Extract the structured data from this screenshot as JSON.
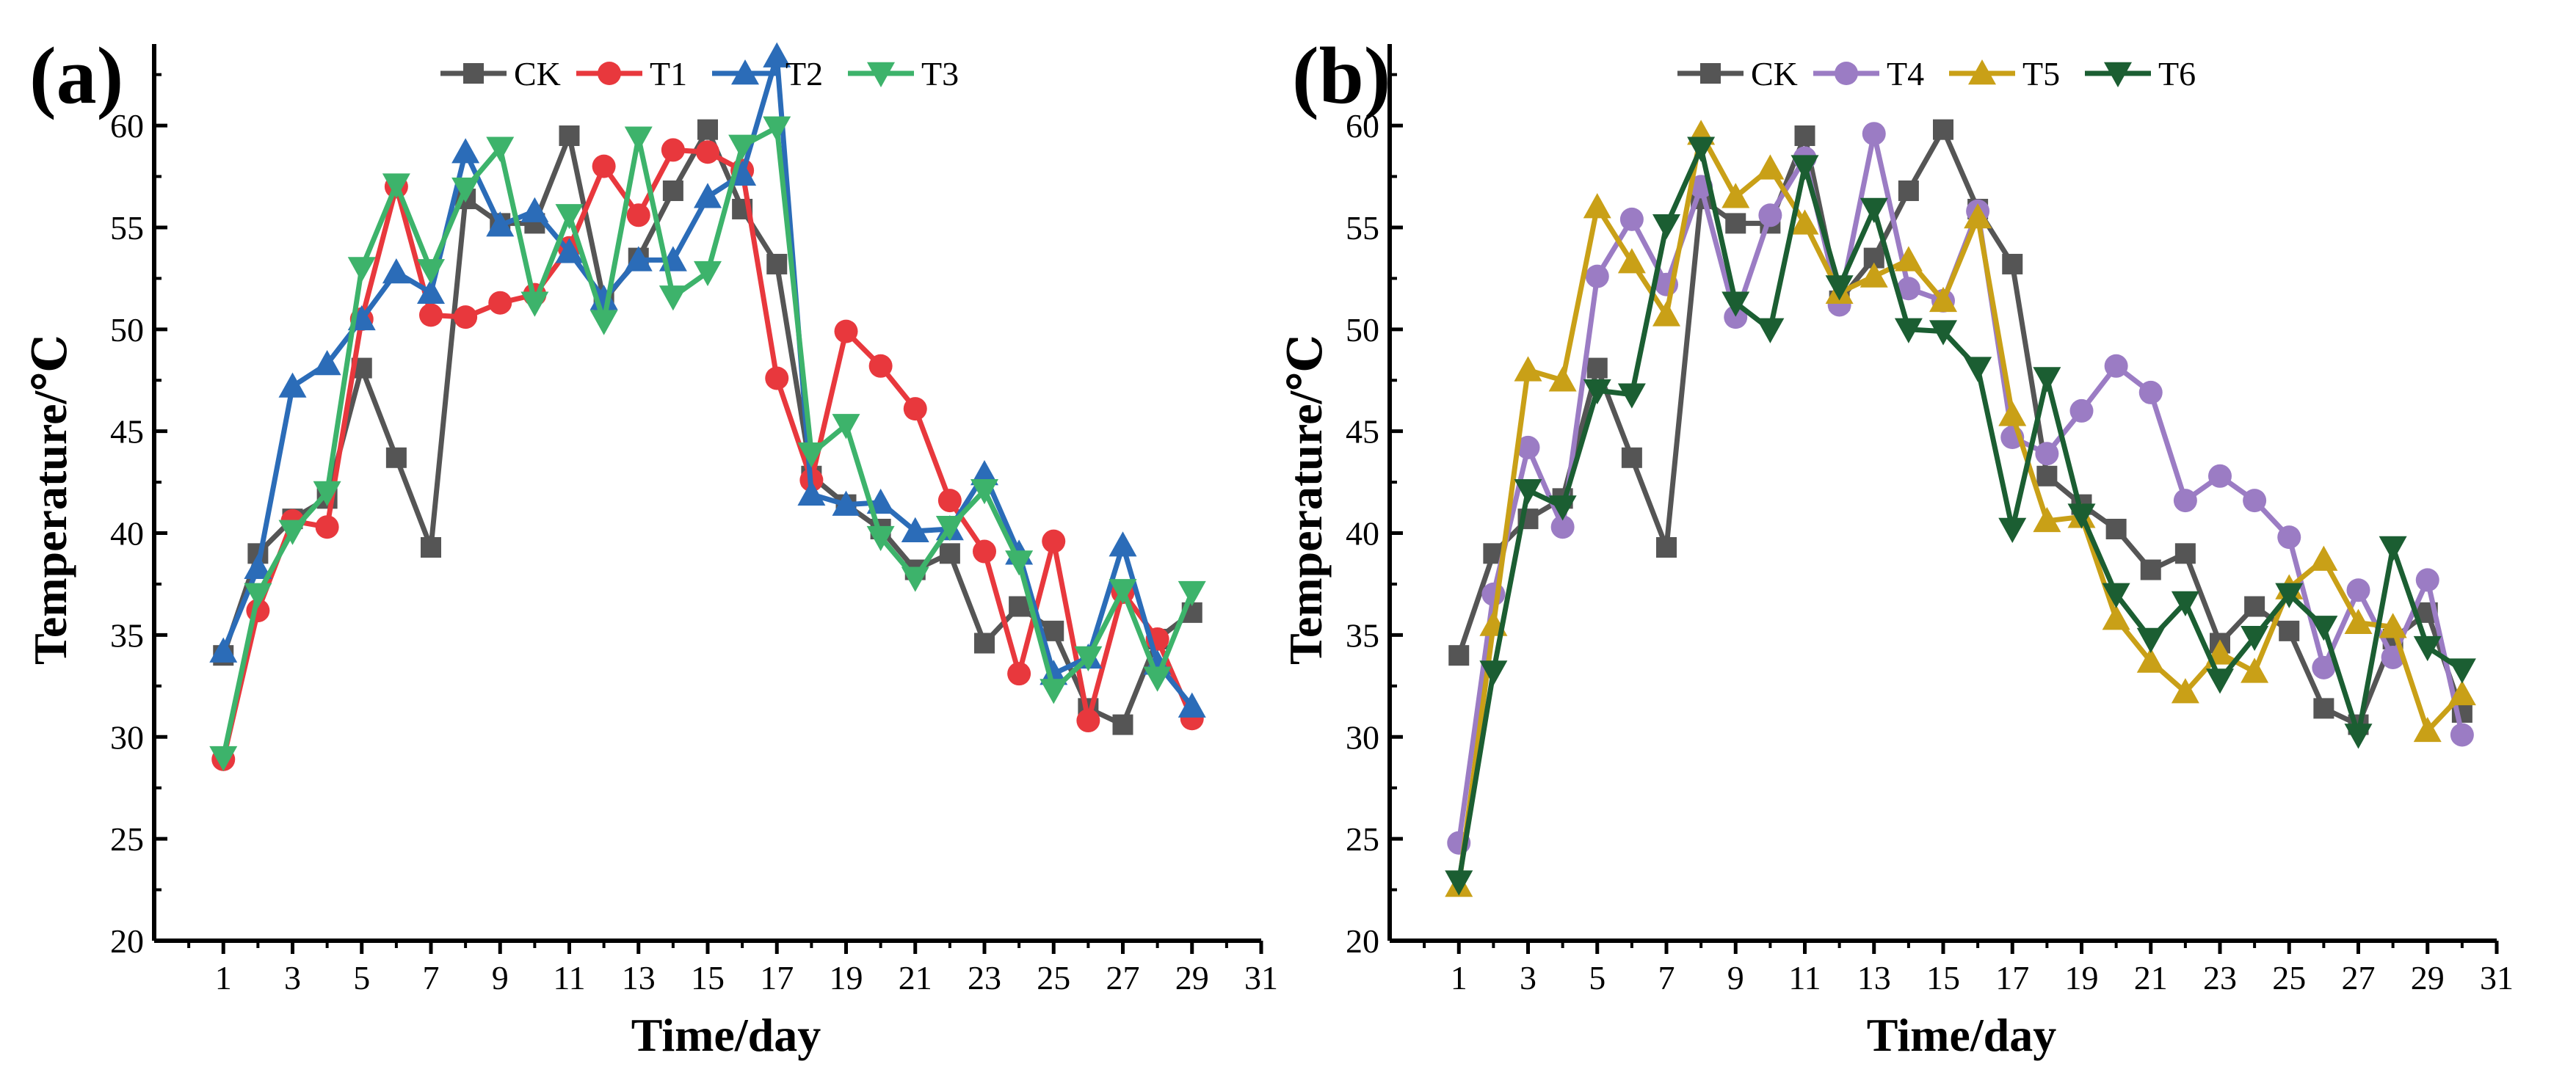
{
  "chart_data": [
    {
      "type": "line",
      "panel_label": "(a)",
      "xlabel": "Time/day",
      "ylabel": "Temperature/℃",
      "xlim": [
        -1,
        31
      ],
      "ylim": [
        20,
        64
      ],
      "xticks": [
        1,
        3,
        5,
        7,
        9,
        11,
        13,
        15,
        17,
        19,
        21,
        23,
        25,
        27,
        29,
        31
      ],
      "yticks": [
        20,
        25,
        30,
        35,
        40,
        45,
        50,
        55,
        60
      ],
      "legend_position": "top",
      "grid": false,
      "series": [
        {
          "name": "CK",
          "color": "#555555",
          "marker": "square",
          "x": [
            1,
            2,
            3,
            4,
            5,
            6,
            7,
            8,
            9,
            10,
            11,
            12,
            13,
            14,
            15,
            16,
            17,
            18,
            19,
            20,
            21,
            22,
            23,
            24,
            25,
            26,
            27,
            28,
            29
          ],
          "values": [
            34.0,
            39.0,
            40.7,
            41.7,
            48.1,
            43.7,
            39.3,
            56.4,
            55.2,
            55.2,
            59.5,
            51.4,
            53.5,
            56.8,
            59.8,
            55.9,
            53.2,
            42.8,
            41.4,
            40.2,
            38.2,
            39.0,
            34.6,
            36.4,
            35.2,
            31.4,
            30.6,
            34.8,
            36.1
          ]
        },
        {
          "name": "T1",
          "color": "#e8383d",
          "marker": "circle",
          "x": [
            1,
            2,
            3,
            4,
            5,
            6,
            7,
            8,
            9,
            10,
            11,
            12,
            13,
            14,
            15,
            16,
            17,
            18,
            19,
            20,
            21,
            22,
            23,
            24,
            25,
            26,
            27,
            28,
            29
          ],
          "values": [
            28.9,
            36.2,
            40.6,
            40.3,
            50.5,
            57.0,
            50.7,
            50.6,
            51.3,
            51.7,
            54.0,
            58.0,
            55.6,
            58.8,
            58.7,
            57.8,
            47.6,
            42.6,
            49.9,
            48.2,
            46.1,
            41.6,
            39.1,
            33.1,
            39.6,
            30.8,
            37.1,
            34.8,
            30.9
          ]
        },
        {
          "name": "T2",
          "color": "#2b6cb8",
          "marker": "triangle-up",
          "x": [
            1,
            2,
            3,
            4,
            5,
            6,
            7,
            8,
            9,
            10,
            11,
            12,
            13,
            14,
            15,
            16,
            17,
            18,
            19,
            20,
            21,
            22,
            23,
            24,
            25,
            26,
            27,
            28,
            29
          ],
          "values": [
            34.2,
            38.3,
            47.2,
            48.3,
            50.5,
            52.8,
            51.8,
            58.7,
            55.1,
            55.8,
            53.8,
            51.5,
            53.4,
            53.4,
            56.5,
            57.6,
            63.4,
            41.9,
            41.4,
            41.5,
            40.1,
            40.2,
            42.9,
            39.0,
            33.1,
            33.9,
            39.4,
            33.6,
            31.5
          ]
        },
        {
          "name": "T3",
          "color": "#3db36b",
          "marker": "triangle-down",
          "x": [
            1,
            2,
            3,
            4,
            5,
            6,
            7,
            8,
            9,
            10,
            11,
            12,
            13,
            14,
            15,
            16,
            17,
            18,
            19,
            20,
            21,
            22,
            23,
            24,
            25,
            26,
            27,
            28,
            29
          ],
          "values": [
            29.0,
            37.0,
            40.1,
            42.0,
            53.0,
            57.1,
            52.9,
            56.9,
            58.9,
            51.3,
            55.6,
            50.4,
            59.4,
            51.6,
            52.8,
            59.0,
            59.9,
            43.9,
            45.3,
            39.8,
            37.8,
            40.3,
            42.1,
            38.6,
            32.3,
            33.9,
            37.2,
            32.9,
            37.1
          ]
        }
      ]
    },
    {
      "type": "line",
      "panel_label": "(b)",
      "xlabel": "Time/day",
      "ylabel": "Temperature/℃",
      "xlim": [
        -1,
        31
      ],
      "ylim": [
        20,
        64
      ],
      "xticks": [
        1,
        3,
        5,
        7,
        9,
        11,
        13,
        15,
        17,
        19,
        21,
        23,
        25,
        27,
        29,
        31
      ],
      "yticks": [
        20,
        25,
        30,
        35,
        40,
        45,
        50,
        55,
        60
      ],
      "legend_position": "top",
      "grid": false,
      "series": [
        {
          "name": "CK",
          "color": "#555555",
          "marker": "square",
          "x": [
            1,
            2,
            3,
            4,
            5,
            6,
            7,
            8,
            9,
            10,
            11,
            12,
            13,
            14,
            15,
            16,
            17,
            18,
            19,
            20,
            21,
            22,
            23,
            24,
            25,
            26,
            27,
            28,
            29,
            30
          ],
          "values": [
            34.0,
            39.0,
            40.7,
            41.7,
            48.1,
            43.7,
            39.3,
            56.4,
            55.2,
            55.2,
            59.5,
            51.4,
            53.5,
            56.8,
            59.8,
            55.9,
            53.2,
            42.8,
            41.4,
            40.2,
            38.2,
            39.0,
            34.6,
            36.4,
            35.2,
            31.4,
            30.6,
            34.8,
            36.1,
            31.2
          ]
        },
        {
          "name": "T4",
          "color": "#9b7cc4",
          "marker": "circle",
          "x": [
            1,
            2,
            3,
            4,
            5,
            6,
            7,
            8,
            9,
            10,
            11,
            12,
            13,
            14,
            15,
            16,
            17,
            18,
            19,
            20,
            21,
            22,
            23,
            24,
            25,
            26,
            27,
            28,
            29,
            30
          ],
          "values": [
            24.8,
            37.0,
            44.2,
            40.3,
            52.6,
            55.4,
            52.2,
            57.0,
            50.6,
            55.6,
            58.4,
            51.2,
            59.6,
            52.0,
            51.4,
            55.8,
            44.7,
            43.9,
            46.0,
            48.2,
            46.9,
            41.6,
            42.8,
            41.6,
            39.8,
            33.4,
            37.2,
            33.9,
            37.7,
            30.1
          ]
        },
        {
          "name": "T5",
          "color": "#c9a017",
          "marker": "triangle-up",
          "x": [
            1,
            2,
            3,
            4,
            5,
            6,
            7,
            8,
            9,
            10,
            11,
            12,
            13,
            14,
            15,
            16,
            17,
            18,
            19,
            20,
            21,
            22,
            23,
            24,
            25,
            26,
            27,
            28,
            29,
            30
          ],
          "values": [
            22.7,
            35.5,
            48.0,
            47.5,
            56.0,
            53.3,
            50.7,
            59.6,
            56.5,
            57.9,
            55.2,
            51.8,
            52.6,
            53.4,
            51.4,
            55.5,
            45.8,
            40.6,
            40.8,
            35.8,
            33.7,
            32.2,
            34.1,
            33.2,
            37.3,
            38.7,
            35.6,
            35.4,
            30.3,
            32.1
          ]
        },
        {
          "name": "T6",
          "color": "#1b5e32",
          "marker": "triangle-down",
          "x": [
            1,
            2,
            3,
            4,
            5,
            6,
            7,
            8,
            9,
            10,
            11,
            12,
            13,
            14,
            15,
            16,
            17,
            18,
            19,
            20,
            21,
            22,
            23,
            24,
            25,
            26,
            27,
            28,
            29,
            30
          ],
          "values": [
            22.9,
            33.2,
            42.1,
            41.3,
            47.0,
            46.8,
            55.1,
            58.9,
            51.3,
            50.0,
            58.0,
            52.1,
            55.9,
            50.0,
            49.9,
            48.1,
            40.2,
            47.6,
            40.9,
            37.0,
            34.8,
            36.6,
            32.8,
            34.9,
            37.0,
            35.4,
            30.1,
            39.3,
            34.4,
            33.3
          ]
        }
      ]
    }
  ]
}
